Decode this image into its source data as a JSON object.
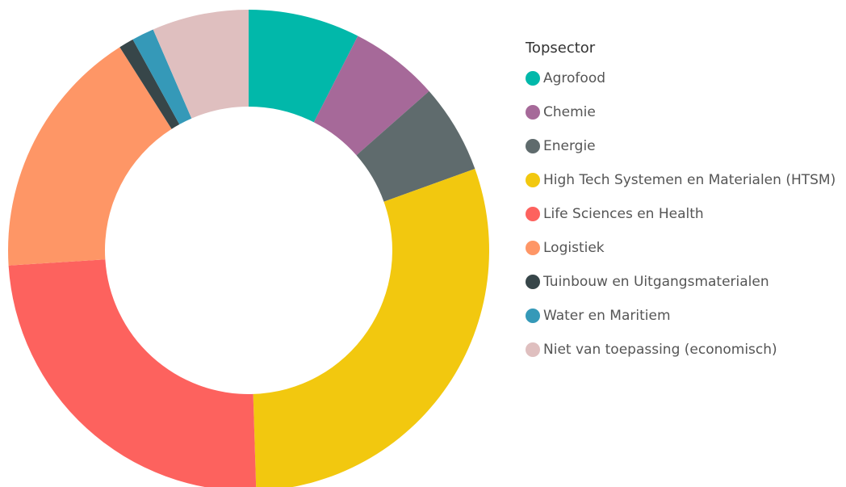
{
  "chart_data": {
    "type": "pie",
    "donut": true,
    "legend_title": "Topsector",
    "legend_position": "right",
    "categories": [
      "Agrofood",
      "Chemie",
      "Energie",
      "High Tech Systemen en Materialen (HTSM)",
      "Life Sciences en Health",
      "Logistiek",
      "Tuinbouw en Uitgangsmaterialen",
      "Water en Maritiem",
      "Niet van toepassing (economisch)"
    ],
    "values": [
      7.5,
      6.0,
      6.0,
      30.0,
      24.5,
      17.0,
      1.0,
      1.5,
      6.5
    ],
    "colors": [
      "#01B8AA",
      "#A66999",
      "#5F6B6D",
      "#F2C80F",
      "#FD625E",
      "#FE9666",
      "#374649",
      "#3599B8",
      "#DFBFBF"
    ]
  }
}
